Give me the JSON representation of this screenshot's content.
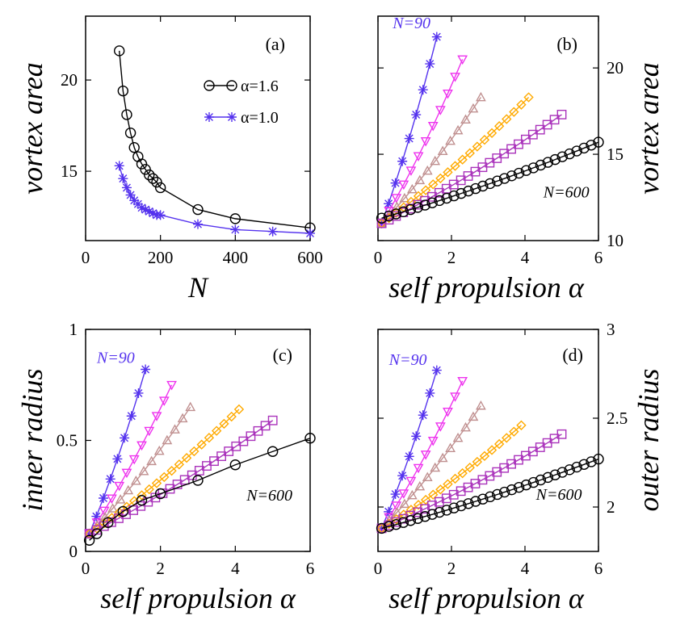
{
  "chart_data": [
    {
      "panel": "(a)",
      "type": "line",
      "xlabel": "N",
      "ylabel": "vortex area",
      "xlim": [
        0,
        600
      ],
      "ylim": [
        11.2,
        23.5
      ],
      "xticks": [
        "0",
        "200",
        "400",
        "600"
      ],
      "yticks": [
        "15",
        "20"
      ],
      "yaxis_side": "left",
      "legend": "top-right",
      "annotations": [],
      "series": [
        {
          "name": "α=1.6",
          "color": "#000000",
          "marker": "circle",
          "x": [
            90,
            100,
            110,
            120,
            130,
            140,
            150,
            160,
            170,
            180,
            190,
            200,
            300,
            400,
            600
          ],
          "y": [
            21.6,
            19.4,
            18.1,
            17.1,
            16.3,
            15.8,
            15.4,
            15.1,
            14.8,
            14.6,
            14.4,
            14.1,
            12.9,
            12.4,
            11.9
          ]
        },
        {
          "name": "α=1.0",
          "color": "#5533ee",
          "marker": "star",
          "x": [
            90,
            100,
            110,
            120,
            130,
            140,
            150,
            160,
            170,
            180,
            190,
            200,
            300,
            400,
            500,
            600
          ],
          "y": [
            15.3,
            14.6,
            14.1,
            13.7,
            13.4,
            13.2,
            13.0,
            12.9,
            12.8,
            12.7,
            12.6,
            12.6,
            12.1,
            11.8,
            11.7,
            11.6
          ]
        }
      ]
    },
    {
      "panel": "(b)",
      "type": "line",
      "xlabel": "self propulsion α",
      "ylabel": "vortex area",
      "xlim": [
        0,
        6
      ],
      "ylim": [
        10,
        23
      ],
      "xticks": [
        "0",
        "2",
        "4",
        "6"
      ],
      "yticks": [
        "10",
        "15",
        "20"
      ],
      "yaxis_side": "right",
      "annotations": [
        {
          "text": "N=90",
          "color": "#5533ee",
          "at": [
            0.4,
            22.3
          ]
        },
        {
          "text": "N=600",
          "color": "#000000",
          "at": [
            4.5,
            12.5
          ]
        }
      ],
      "series": [
        {
          "color": "#5533ee",
          "marker": "star",
          "x": [
            0.1,
            1.6
          ],
          "y": [
            11.0,
            21.8
          ]
        },
        {
          "color": "#ee33ee",
          "marker": "triangle-down",
          "x": [
            0.1,
            2.3
          ],
          "y": [
            11.0,
            20.5
          ]
        },
        {
          "color": "#c09090",
          "marker": "triangle-up",
          "x": [
            0.1,
            2.8
          ],
          "y": [
            11.0,
            18.3
          ]
        },
        {
          "color": "#ffaa00",
          "marker": "diamond",
          "x": [
            0.1,
            4.1
          ],
          "y": [
            11.0,
            18.3
          ]
        },
        {
          "color": "#aa33bb",
          "marker": "square",
          "x": [
            0.1,
            5.0
          ],
          "y": [
            11.0,
            17.3
          ]
        },
        {
          "color": "#000000",
          "marker": "circle",
          "x": [
            0.1,
            6.0
          ],
          "y": [
            11.3,
            15.7
          ]
        }
      ]
    },
    {
      "panel": "(c)",
      "type": "line",
      "xlabel": "self propulsion α",
      "ylabel": "inner radius",
      "xlim": [
        0,
        6
      ],
      "ylim": [
        0,
        1
      ],
      "xticks": [
        "0",
        "2",
        "4",
        "6"
      ],
      "yticks": [
        "0",
        "0.5",
        "1"
      ],
      "yaxis_side": "left",
      "annotations": [
        {
          "text": "N=90",
          "color": "#5533ee",
          "at": [
            0.3,
            0.85
          ]
        },
        {
          "text": "N=600",
          "color": "#000000",
          "at": [
            4.3,
            0.23
          ]
        }
      ],
      "series": [
        {
          "color": "#5533ee",
          "marker": "star",
          "x": [
            0.1,
            1.6
          ],
          "y": [
            0.08,
            0.82
          ]
        },
        {
          "color": "#ee33ee",
          "marker": "triangle-down",
          "x": [
            0.1,
            2.3
          ],
          "y": [
            0.08,
            0.75
          ]
        },
        {
          "color": "#c09090",
          "marker": "triangle-up",
          "x": [
            0.1,
            2.8
          ],
          "y": [
            0.08,
            0.65
          ]
        },
        {
          "color": "#ffaa00",
          "marker": "diamond",
          "x": [
            0.1,
            4.1
          ],
          "y": [
            0.08,
            0.64
          ]
        },
        {
          "color": "#aa33bb",
          "marker": "square",
          "x": [
            0.1,
            5.0
          ],
          "y": [
            0.08,
            0.59
          ]
        },
        {
          "color": "#000000",
          "marker": "circle",
          "x": [
            0.1,
            0.3,
            0.6,
            1.0,
            1.5,
            2.0,
            3.0,
            4.0,
            5.0,
            6.0
          ],
          "y": [
            0.05,
            0.08,
            0.13,
            0.18,
            0.23,
            0.26,
            0.32,
            0.39,
            0.45,
            0.51
          ]
        }
      ]
    },
    {
      "panel": "(d)",
      "type": "line",
      "xlabel": "self propulsion α",
      "ylabel": "outer radius",
      "xlim": [
        0,
        6
      ],
      "ylim": [
        1.75,
        3
      ],
      "xticks": [
        "0",
        "2",
        "4",
        "6"
      ],
      "yticks": [
        "2",
        "2.5",
        "3"
      ],
      "yaxis_side": "right",
      "annotations": [
        {
          "text": "N=90",
          "color": "#5533ee",
          "at": [
            0.3,
            2.8
          ]
        },
        {
          "text": "N=600",
          "color": "#000000",
          "at": [
            4.3,
            2.04
          ]
        }
      ],
      "series": [
        {
          "color": "#5533ee",
          "marker": "star",
          "x": [
            0.1,
            1.6
          ],
          "y": [
            1.88,
            2.77
          ]
        },
        {
          "color": "#ee33ee",
          "marker": "triangle-down",
          "x": [
            0.1,
            2.3
          ],
          "y": [
            1.88,
            2.71
          ]
        },
        {
          "color": "#c09090",
          "marker": "triangle-up",
          "x": [
            0.1,
            2.8
          ],
          "y": [
            1.88,
            2.57
          ]
        },
        {
          "color": "#ffaa00",
          "marker": "diamond",
          "x": [
            0.1,
            3.9
          ],
          "y": [
            1.88,
            2.46
          ]
        },
        {
          "color": "#aa33bb",
          "marker": "square",
          "x": [
            0.1,
            5.0
          ],
          "y": [
            1.88,
            2.41
          ]
        },
        {
          "color": "#000000",
          "marker": "circle",
          "x": [
            0.1,
            6.0
          ],
          "y": [
            1.88,
            2.27
          ]
        }
      ]
    }
  ]
}
